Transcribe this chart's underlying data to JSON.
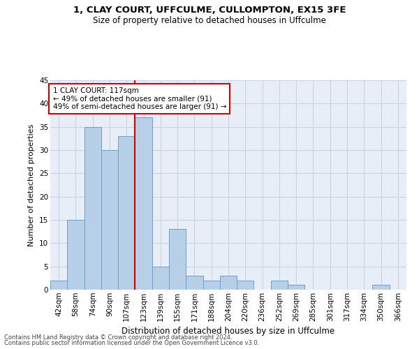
{
  "title1": "1, CLAY COURT, UFFCULME, CULLOMPTON, EX15 3FE",
  "title2": "Size of property relative to detached houses in Uffculme",
  "xlabel": "Distribution of detached houses by size in Uffculme",
  "ylabel": "Number of detached properties",
  "bar_labels": [
    "42sqm",
    "58sqm",
    "74sqm",
    "90sqm",
    "107sqm",
    "123sqm",
    "139sqm",
    "155sqm",
    "171sqm",
    "188sqm",
    "204sqm",
    "220sqm",
    "236sqm",
    "252sqm",
    "269sqm",
    "285sqm",
    "301sqm",
    "317sqm",
    "334sqm",
    "350sqm",
    "366sqm"
  ],
  "bar_values": [
    2,
    15,
    35,
    30,
    33,
    37,
    5,
    13,
    3,
    2,
    3,
    2,
    0,
    2,
    1,
    0,
    0,
    0,
    0,
    1,
    0
  ],
  "bar_color": "#b8cfe8",
  "bar_edge_color": "#6aa0cc",
  "annotation_box_text": "1 CLAY COURT: 117sqm\n← 49% of detached houses are smaller (91)\n49% of semi-detached houses are larger (91) →",
  "vline_color": "#cc0000",
  "box_edge_color": "#cc0000",
  "grid_color": "#c8d4e4",
  "background_color": "#e8eef8",
  "footer1": "Contains HM Land Registry data © Crown copyright and database right 2024.",
  "footer2": "Contains public sector information licensed under the Open Government Licence v3.0.",
  "ylim": [
    0,
    45
  ],
  "yticks": [
    0,
    5,
    10,
    15,
    20,
    25,
    30,
    35,
    40,
    45
  ],
  "vline_x_index": 5.0,
  "title1_fontsize": 9.5,
  "title2_fontsize": 8.5,
  "xlabel_fontsize": 8.5,
  "ylabel_fontsize": 8.0,
  "tick_fontsize": 7.5,
  "footer_fontsize": 6.0,
  "annot_fontsize": 7.5
}
